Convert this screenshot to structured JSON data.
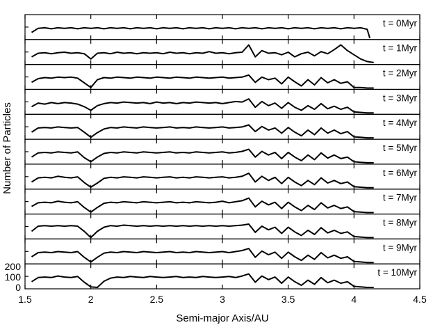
{
  "chart_data": {
    "type": "line",
    "xlabel": "Semi-major Axis/AU",
    "ylabel": "Number of Particles",
    "xlim": [
      1.5,
      4.5
    ],
    "xticks": [
      1.5,
      2,
      2.5,
      3,
      3.5,
      4,
      4.5
    ],
    "xtick_labels": [
      "1.5",
      "2",
      "2.5",
      "3",
      "3.5",
      "4",
      "4.5"
    ],
    "ylim": [
      0,
      200
    ],
    "yticks": [
      0,
      100,
      200
    ],
    "ytick_labels": [
      "0",
      "100",
      "200"
    ],
    "line_color": "#000000",
    "grid": false,
    "series": [
      {
        "name": "t = 0Myr",
        "x": [
          1.55,
          1.6,
          1.65,
          1.7,
          1.75,
          1.8,
          1.85,
          1.9,
          1.95,
          2.0,
          2.05,
          2.1,
          2.15,
          2.2,
          2.25,
          2.3,
          2.35,
          2.4,
          2.45,
          2.5,
          2.55,
          2.6,
          2.65,
          2.7,
          2.75,
          2.8,
          2.85,
          2.9,
          2.95,
          3.0,
          3.05,
          3.1,
          3.15,
          3.2,
          3.25,
          3.3,
          3.35,
          3.4,
          3.45,
          3.5,
          3.55,
          3.6,
          3.65,
          3.7,
          3.75,
          3.8,
          3.85,
          3.9,
          3.95,
          4.0,
          4.05,
          4.1,
          4.12
        ],
        "y": [
          55,
          95,
          100,
          90,
          100,
          95,
          100,
          90,
          100,
          95,
          100,
          90,
          100,
          95,
          100,
          90,
          100,
          95,
          100,
          90,
          100,
          95,
          100,
          90,
          100,
          95,
          100,
          90,
          100,
          95,
          100,
          90,
          100,
          95,
          100,
          90,
          100,
          95,
          100,
          90,
          100,
          95,
          100,
          90,
          100,
          95,
          100,
          90,
          100,
          95,
          100,
          85,
          0
        ]
      },
      {
        "name": "t = 1Myr",
        "x": [
          1.55,
          1.6,
          1.65,
          1.7,
          1.75,
          1.8,
          1.85,
          1.9,
          1.95,
          2.0,
          2.05,
          2.1,
          2.15,
          2.2,
          2.25,
          2.3,
          2.35,
          2.4,
          2.45,
          2.5,
          2.55,
          2.6,
          2.65,
          2.7,
          2.75,
          2.8,
          2.85,
          2.9,
          2.95,
          3.0,
          3.05,
          3.1,
          3.15,
          3.2,
          3.25,
          3.3,
          3.35,
          3.4,
          3.45,
          3.5,
          3.55,
          3.6,
          3.65,
          3.7,
          3.75,
          3.8,
          3.85,
          3.9,
          3.95,
          4.0,
          4.05,
          4.1,
          4.15
        ],
        "y": [
          60,
          95,
          100,
          90,
          100,
          105,
          95,
          100,
          90,
          40,
          95,
          100,
          90,
          105,
          95,
          100,
          90,
          100,
          95,
          100,
          90,
          105,
          95,
          100,
          90,
          100,
          95,
          110,
          95,
          100,
          90,
          100,
          105,
          175,
          60,
          120,
          95,
          100,
          80,
          105,
          60,
          90,
          105,
          70,
          110,
          90,
          130,
          175,
          120,
          80,
          40,
          15,
          5
        ]
      },
      {
        "name": "t = 2Myr",
        "x": [
          1.55,
          1.6,
          1.65,
          1.7,
          1.75,
          1.8,
          1.85,
          1.9,
          1.95,
          2.0,
          2.05,
          2.1,
          2.15,
          2.2,
          2.25,
          2.3,
          2.35,
          2.4,
          2.45,
          2.5,
          2.55,
          2.6,
          2.65,
          2.7,
          2.75,
          2.8,
          2.85,
          2.9,
          2.95,
          3.0,
          3.05,
          3.1,
          3.15,
          3.2,
          3.25,
          3.3,
          3.35,
          3.4,
          3.45,
          3.5,
          3.55,
          3.6,
          3.65,
          3.7,
          3.75,
          3.8,
          3.85,
          3.9,
          3.95,
          4.0,
          4.05,
          4.1,
          4.15
        ],
        "y": [
          55,
          90,
          100,
          95,
          105,
          100,
          105,
          95,
          50,
          5,
          80,
          100,
          95,
          105,
          100,
          95,
          105,
          100,
          95,
          105,
          100,
          95,
          105,
          100,
          95,
          105,
          100,
          95,
          100,
          105,
          95,
          100,
          105,
          125,
          55,
          105,
          80,
          95,
          40,
          105,
          60,
          20,
          80,
          30,
          100,
          50,
          80,
          45,
          60,
          5,
          5,
          0,
          0
        ]
      },
      {
        "name": "t = 3Myr",
        "x": [
          1.55,
          1.6,
          1.65,
          1.7,
          1.75,
          1.8,
          1.85,
          1.9,
          1.95,
          2.0,
          2.05,
          2.1,
          2.15,
          2.2,
          2.25,
          2.3,
          2.35,
          2.4,
          2.45,
          2.5,
          2.55,
          2.6,
          2.65,
          2.7,
          2.75,
          2.8,
          2.85,
          2.9,
          2.95,
          3.0,
          3.05,
          3.1,
          3.15,
          3.2,
          3.25,
          3.3,
          3.35,
          3.4,
          3.45,
          3.5,
          3.55,
          3.6,
          3.65,
          3.7,
          3.75,
          3.8,
          3.85,
          3.9,
          3.95,
          4.0,
          4.05,
          4.1,
          4.15
        ],
        "y": [
          60,
          95,
          85,
          100,
          90,
          100,
          95,
          85,
          60,
          25,
          70,
          90,
          100,
          95,
          105,
          100,
          95,
          100,
          90,
          105,
          95,
          100,
          90,
          100,
          95,
          105,
          100,
          95,
          100,
          90,
          100,
          110,
          105,
          135,
          55,
          110,
          70,
          95,
          45,
          100,
          55,
          25,
          70,
          35,
          90,
          40,
          65,
          35,
          55,
          10,
          5,
          0,
          0
        ]
      },
      {
        "name": "t = 4Myr",
        "x": [
          1.55,
          1.6,
          1.65,
          1.7,
          1.75,
          1.8,
          1.85,
          1.9,
          1.95,
          2.0,
          2.05,
          2.1,
          2.15,
          2.2,
          2.25,
          2.3,
          2.35,
          2.4,
          2.45,
          2.5,
          2.55,
          2.6,
          2.65,
          2.7,
          2.75,
          2.8,
          2.85,
          2.9,
          2.95,
          3.0,
          3.05,
          3.1,
          3.15,
          3.2,
          3.25,
          3.3,
          3.35,
          3.4,
          3.45,
          3.5,
          3.55,
          3.6,
          3.65,
          3.7,
          3.75,
          3.8,
          3.85,
          3.9,
          3.95,
          4.0,
          4.05,
          4.1,
          4.15
        ],
        "y": [
          55,
          95,
          100,
          95,
          105,
          100,
          95,
          100,
          55,
          5,
          50,
          85,
          100,
          95,
          105,
          100,
          95,
          105,
          100,
          95,
          100,
          105,
          95,
          100,
          95,
          105,
          100,
          95,
          100,
          105,
          95,
          100,
          105,
          125,
          60,
          110,
          75,
          95,
          45,
          100,
          55,
          20,
          75,
          30,
          95,
          45,
          75,
          40,
          60,
          10,
          5,
          0,
          0
        ]
      },
      {
        "name": "t = 5Myr",
        "x": [
          1.55,
          1.6,
          1.65,
          1.7,
          1.75,
          1.8,
          1.85,
          1.9,
          1.95,
          2.0,
          2.05,
          2.1,
          2.15,
          2.2,
          2.25,
          2.3,
          2.35,
          2.4,
          2.45,
          2.5,
          2.55,
          2.6,
          2.65,
          2.7,
          2.75,
          2.8,
          2.85,
          2.9,
          2.95,
          3.0,
          3.05,
          3.1,
          3.15,
          3.2,
          3.25,
          3.3,
          3.35,
          3.4,
          3.45,
          3.5,
          3.55,
          3.6,
          3.65,
          3.7,
          3.75,
          3.8,
          3.85,
          3.9,
          3.95,
          4.0,
          4.05,
          4.1,
          4.15
        ],
        "y": [
          55,
          95,
          100,
          95,
          105,
          100,
          95,
          105,
          50,
          10,
          55,
          90,
          100,
          95,
          105,
          100,
          95,
          105,
          100,
          95,
          100,
          105,
          95,
          100,
          95,
          105,
          100,
          95,
          100,
          105,
          95,
          100,
          110,
          130,
          55,
          110,
          75,
          100,
          40,
          100,
          55,
          20,
          75,
          30,
          95,
          45,
          75,
          40,
          55,
          10,
          5,
          0,
          0
        ]
      },
      {
        "name": "t = 6Myr",
        "x": [
          1.55,
          1.6,
          1.65,
          1.7,
          1.75,
          1.8,
          1.85,
          1.9,
          1.95,
          2.0,
          2.05,
          2.1,
          2.15,
          2.2,
          2.25,
          2.3,
          2.35,
          2.4,
          2.45,
          2.5,
          2.55,
          2.6,
          2.65,
          2.7,
          2.75,
          2.8,
          2.85,
          2.9,
          2.95,
          3.0,
          3.05,
          3.1,
          3.15,
          3.2,
          3.25,
          3.3,
          3.35,
          3.4,
          3.45,
          3.5,
          3.55,
          3.6,
          3.65,
          3.7,
          3.75,
          3.8,
          3.85,
          3.9,
          3.95,
          4.0,
          4.05,
          4.1,
          4.15
        ],
        "y": [
          55,
          95,
          100,
          95,
          110,
          100,
          95,
          105,
          50,
          5,
          45,
          90,
          100,
          95,
          105,
          100,
          95,
          105,
          100,
          95,
          100,
          105,
          95,
          100,
          95,
          105,
          100,
          95,
          100,
          105,
          95,
          100,
          110,
          140,
          55,
          110,
          70,
          100,
          40,
          100,
          55,
          20,
          70,
          30,
          95,
          45,
          70,
          40,
          55,
          10,
          5,
          0,
          0
        ]
      },
      {
        "name": "t = 7Myr",
        "x": [
          1.55,
          1.6,
          1.65,
          1.7,
          1.75,
          1.8,
          1.85,
          1.9,
          1.95,
          2.0,
          2.05,
          2.1,
          2.15,
          2.2,
          2.25,
          2.3,
          2.35,
          2.4,
          2.45,
          2.5,
          2.55,
          2.6,
          2.65,
          2.7,
          2.75,
          2.8,
          2.85,
          2.9,
          2.95,
          3.0,
          3.05,
          3.1,
          3.15,
          3.2,
          3.25,
          3.3,
          3.35,
          3.4,
          3.45,
          3.5,
          3.55,
          3.6,
          3.65,
          3.7,
          3.75,
          3.8,
          3.85,
          3.9,
          3.95,
          4.0,
          4.05,
          4.1,
          4.15
        ],
        "y": [
          60,
          95,
          100,
          95,
          110,
          100,
          95,
          105,
          50,
          5,
          50,
          90,
          100,
          95,
          105,
          100,
          95,
          105,
          100,
          95,
          100,
          105,
          95,
          100,
          95,
          105,
          100,
          95,
          100,
          110,
          95,
          105,
          115,
          140,
          55,
          110,
          75,
          100,
          40,
          100,
          55,
          20,
          70,
          30,
          95,
          45,
          70,
          40,
          55,
          10,
          5,
          0,
          0
        ]
      },
      {
        "name": "t = 8Myr",
        "x": [
          1.55,
          1.6,
          1.65,
          1.7,
          1.75,
          1.8,
          1.85,
          1.9,
          1.95,
          2.0,
          2.05,
          2.1,
          2.15,
          2.2,
          2.25,
          2.3,
          2.35,
          2.4,
          2.45,
          2.5,
          2.55,
          2.6,
          2.65,
          2.7,
          2.75,
          2.8,
          2.85,
          2.9,
          2.95,
          3.0,
          3.05,
          3.1,
          3.15,
          3.2,
          3.25,
          3.3,
          3.35,
          3.4,
          3.45,
          3.5,
          3.55,
          3.6,
          3.65,
          3.7,
          3.75,
          3.8,
          3.85,
          3.9,
          3.95,
          4.0,
          4.05,
          4.1,
          4.15
        ],
        "y": [
          60,
          110,
          115,
          110,
          115,
          110,
          115,
          110,
          60,
          0,
          60,
          100,
          115,
          110,
          120,
          115,
          110,
          115,
          110,
          115,
          110,
          115,
          110,
          115,
          110,
          115,
          110,
          115,
          110,
          115,
          110,
          115,
          120,
          130,
          50,
          110,
          75,
          100,
          40,
          100,
          55,
          20,
          70,
          30,
          95,
          45,
          70,
          40,
          55,
          10,
          5,
          0,
          0
        ]
      },
      {
        "name": "t = 9Myr",
        "x": [
          1.55,
          1.6,
          1.65,
          1.7,
          1.75,
          1.8,
          1.85,
          1.9,
          1.95,
          2.0,
          2.05,
          2.1,
          2.15,
          2.2,
          2.25,
          2.3,
          2.35,
          2.4,
          2.45,
          2.5,
          2.55,
          2.6,
          2.65,
          2.7,
          2.75,
          2.8,
          2.85,
          2.9,
          2.95,
          3.0,
          3.05,
          3.1,
          3.15,
          3.2,
          3.25,
          3.3,
          3.35,
          3.4,
          3.45,
          3.5,
          3.55,
          3.6,
          3.65,
          3.7,
          3.75,
          3.8,
          3.85,
          3.9,
          3.95,
          4.0,
          4.05,
          4.1,
          4.15
        ],
        "y": [
          55,
          95,
          100,
          95,
          105,
          100,
          95,
          105,
          50,
          5,
          50,
          90,
          100,
          95,
          105,
          100,
          95,
          105,
          100,
          95,
          100,
          105,
          95,
          100,
          95,
          105,
          100,
          95,
          100,
          105,
          95,
          105,
          115,
          135,
          50,
          110,
          75,
          100,
          40,
          100,
          55,
          20,
          70,
          30,
          95,
          45,
          70,
          40,
          55,
          10,
          5,
          0,
          0
        ]
      },
      {
        "name": "t = 10Myr",
        "x": [
          1.55,
          1.6,
          1.65,
          1.7,
          1.75,
          1.8,
          1.85,
          1.9,
          1.95,
          2.0,
          2.05,
          2.1,
          2.15,
          2.2,
          2.25,
          2.3,
          2.35,
          2.4,
          2.45,
          2.5,
          2.55,
          2.6,
          2.65,
          2.7,
          2.75,
          2.8,
          2.85,
          2.9,
          2.95,
          3.0,
          3.05,
          3.1,
          3.15,
          3.2,
          3.25,
          3.3,
          3.35,
          3.4,
          3.45,
          3.5,
          3.55,
          3.6,
          3.65,
          3.7,
          3.75,
          3.8,
          3.85,
          3.9,
          3.95,
          4.0,
          4.05,
          4.1,
          4.15
        ],
        "y": [
          55,
          95,
          100,
          95,
          110,
          100,
          95,
          105,
          50,
          5,
          0,
          60,
          90,
          100,
          95,
          105,
          100,
          95,
          105,
          100,
          95,
          100,
          105,
          95,
          100,
          95,
          105,
          100,
          95,
          100,
          105,
          95,
          110,
          130,
          50,
          110,
          75,
          100,
          40,
          100,
          55,
          20,
          70,
          30,
          95,
          45,
          70,
          40,
          55,
          10,
          5,
          0,
          0
        ]
      }
    ]
  }
}
